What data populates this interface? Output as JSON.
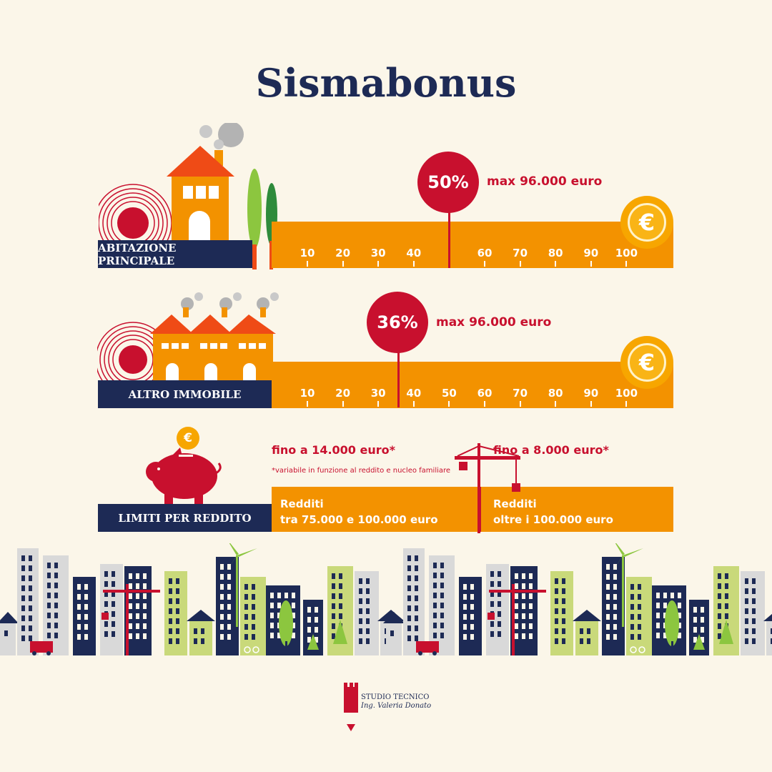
{
  "title": "Sismabonus",
  "row1": {
    "label": "ABITAZIONE PRINCIPALE",
    "ticks": [
      "10",
      "20",
      "30",
      "40",
      "",
      "60",
      "70",
      "80",
      "90",
      "100"
    ],
    "percent": "50%",
    "max": "max 96.000 euro",
    "euro_symbol": "€"
  },
  "row2": {
    "label": "ALTRO IMMOBILE",
    "ticks": [
      "10",
      "20",
      "30",
      "40",
      "50",
      "60",
      "70",
      "80",
      "90",
      "100"
    ],
    "percent": "36%",
    "max": "max 96.000 euro",
    "euro_symbol": "€"
  },
  "row3": {
    "label": "LIMITI PER REDDITO",
    "limit1": "fino a 14.000 euro*",
    "note": "*variabile in funzione al reddito e nucleo familiare",
    "limit2": "fino a 8.000 euro*",
    "income1_line1": "Redditi",
    "income1_line2": "tra 75.000 e 100.000 euro",
    "income2_line1": "Redditi",
    "income2_line2": "oltre i 100.000 euro",
    "coin_symbol": "€"
  },
  "logo": {
    "line1": "STUDIO TECNICO",
    "line2": "Ing. Valeria Donato"
  },
  "colors": {
    "navy": "#1d2a55",
    "orange": "#f39200",
    "red": "#c8102e",
    "gold": "#f7a600",
    "background": "#fbf6e9"
  }
}
